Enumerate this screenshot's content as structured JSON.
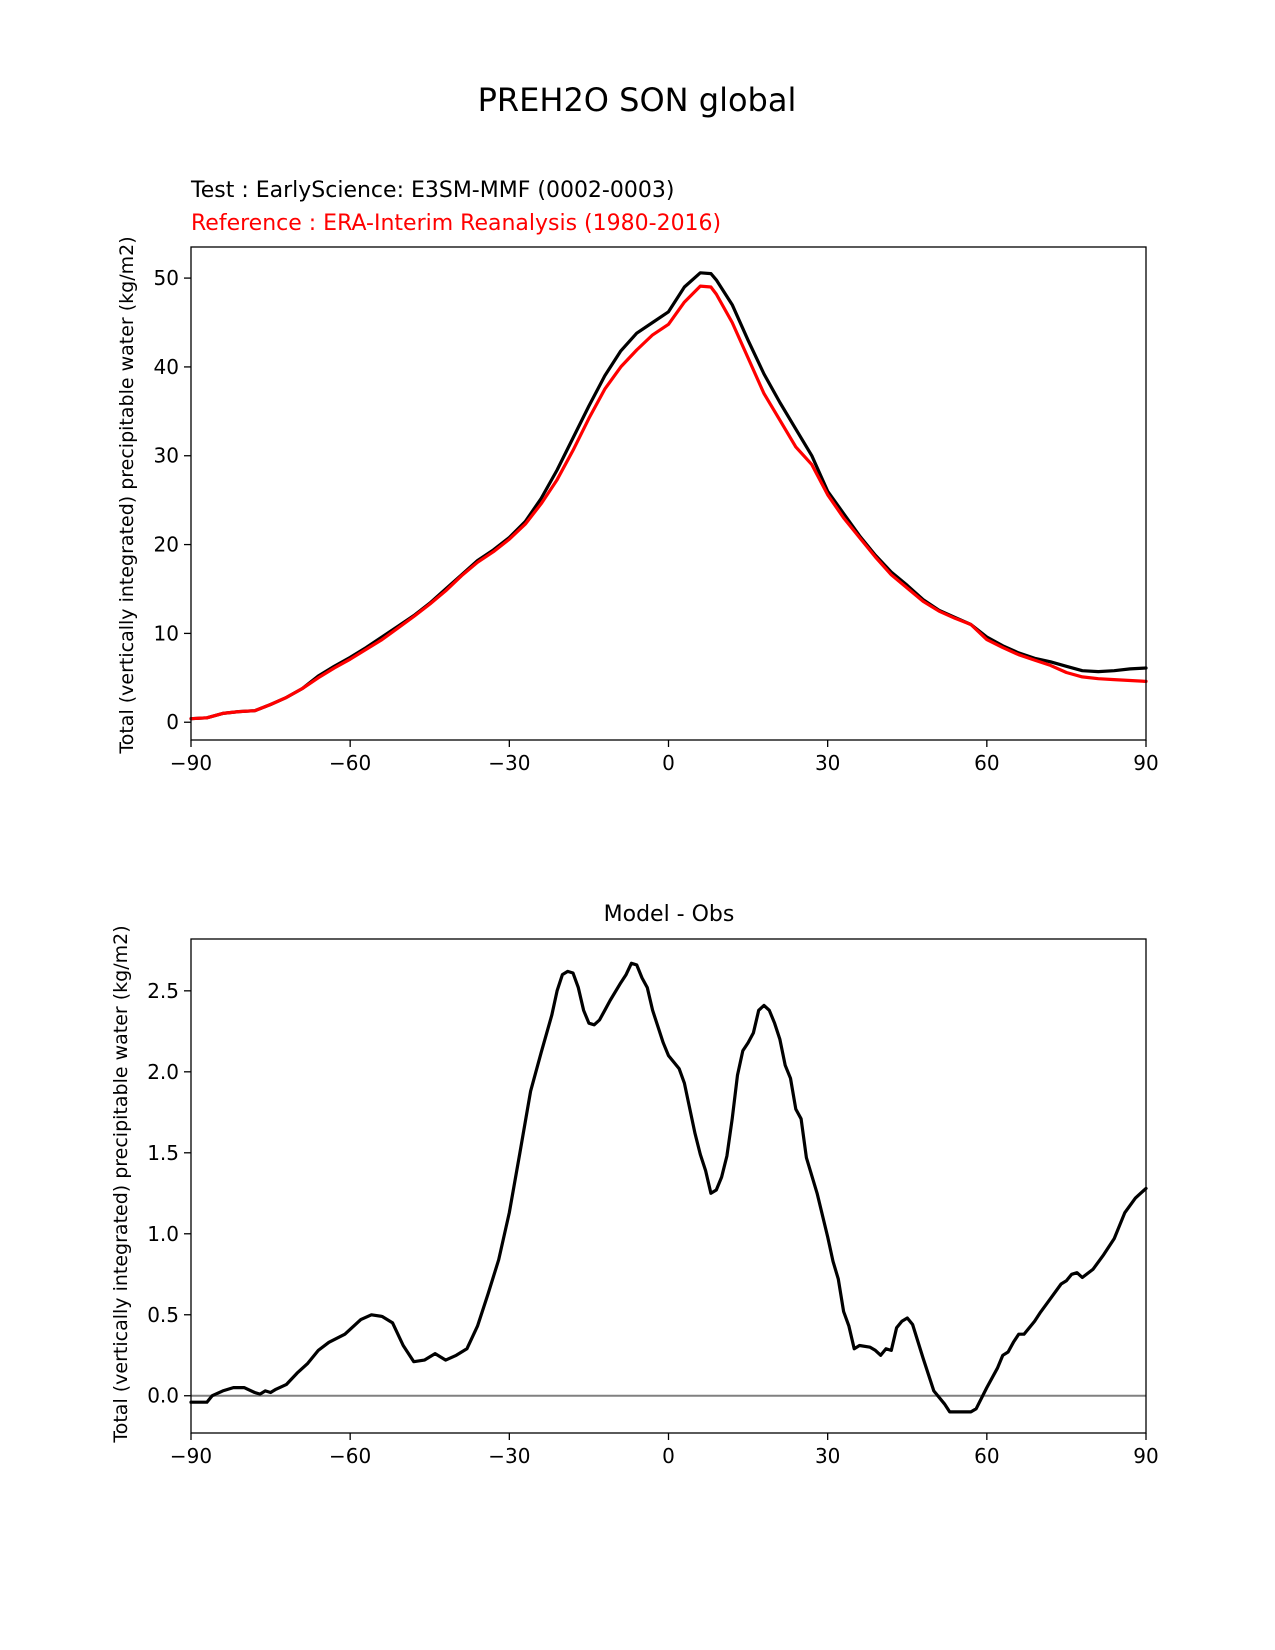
{
  "figure": {
    "title": "PREH2O SON global"
  },
  "chart_data": [
    {
      "type": "line",
      "test_label": "Test : EarlyScience: E3SM-MMF (0002-0003)",
      "reference_label": "Reference : ERA-Interim Reanalysis (1980-2016)",
      "xlabel": "",
      "ylabel": "Total (vertically integrated) precipitable water (kg/m2)",
      "xlim": [
        -90,
        90
      ],
      "ylim": [
        -2,
        53.5
      ],
      "xticks": [
        -90,
        -60,
        -30,
        0,
        30,
        60,
        90
      ],
      "xtick_labels": [
        "−90",
        "−60",
        "−30",
        "0",
        "30",
        "60",
        "90"
      ],
      "yticks": [
        0,
        10,
        20,
        30,
        40,
        50
      ],
      "ytick_labels": [
        "0",
        "10",
        "20",
        "30",
        "40",
        "50"
      ],
      "grid": false,
      "x": [
        -90,
        -87,
        -84,
        -81,
        -78,
        -75,
        -72,
        -69,
        -66,
        -63,
        -60,
        -57,
        -54,
        -51,
        -48,
        -45,
        -42,
        -39,
        -36,
        -33,
        -30,
        -27,
        -24,
        -21,
        -18,
        -15,
        -12,
        -9,
        -6,
        -3,
        0,
        3,
        6,
        8,
        9,
        12,
        15,
        18,
        21,
        24,
        27,
        30,
        33,
        36,
        39,
        42,
        45,
        48,
        51,
        54,
        57,
        60,
        63,
        66,
        69,
        72,
        75,
        78,
        81,
        84,
        87,
        90
      ],
      "series": [
        {
          "name": "Test",
          "color": "#000000",
          "values": [
            0.4,
            0.5,
            1.0,
            1.2,
            1.3,
            2.0,
            2.8,
            3.8,
            5.2,
            6.3,
            7.3,
            8.4,
            9.6,
            10.8,
            12.0,
            13.4,
            15.0,
            16.6,
            18.2,
            19.4,
            20.8,
            22.6,
            25.2,
            28.4,
            32.0,
            35.6,
            39.0,
            41.8,
            43.8,
            45.0,
            46.2,
            49.0,
            50.6,
            50.5,
            49.8,
            47.0,
            43.0,
            39.2,
            36.0,
            33.0,
            30.0,
            26.0,
            23.5,
            21.0,
            18.8,
            16.9,
            15.4,
            13.8,
            12.6,
            11.8,
            11.0,
            9.6,
            8.6,
            7.8,
            7.2,
            6.8,
            6.3,
            5.8,
            5.7,
            5.8,
            6.0,
            6.1
          ]
        },
        {
          "name": "Reference",
          "color": "#ff0000",
          "values": [
            0.4,
            0.5,
            1.0,
            1.2,
            1.3,
            2.0,
            2.8,
            3.8,
            5.0,
            6.1,
            7.1,
            8.2,
            9.3,
            10.6,
            11.9,
            13.3,
            14.8,
            16.5,
            18.0,
            19.2,
            20.6,
            22.3,
            24.6,
            27.3,
            30.6,
            34.2,
            37.5,
            40.0,
            41.9,
            43.6,
            44.8,
            47.3,
            49.1,
            49.0,
            48.2,
            45.0,
            41.0,
            37.0,
            34.0,
            31.0,
            29.0,
            25.6,
            23.0,
            20.8,
            18.6,
            16.6,
            15.1,
            13.6,
            12.5,
            11.7,
            11.0,
            9.3,
            8.4,
            7.6,
            7.0,
            6.4,
            5.6,
            5.1,
            4.9,
            4.8,
            4.7,
            4.6
          ]
        }
      ]
    },
    {
      "type": "line",
      "title": "Model - Obs",
      "xlabel": "",
      "ylabel": "Total (vertically integrated) precipitable water (kg/m2)",
      "xlim": [
        -90,
        90
      ],
      "ylim": [
        -0.23,
        2.82
      ],
      "xticks": [
        -90,
        -60,
        -30,
        0,
        30,
        60,
        90
      ],
      "xtick_labels": [
        "−90",
        "−60",
        "−30",
        "0",
        "30",
        "60",
        "90"
      ],
      "yticks": [
        0.0,
        0.5,
        1.0,
        1.5,
        2.0,
        2.5
      ],
      "ytick_labels": [
        "0.0",
        "0.5",
        "1.0",
        "1.5",
        "2.0",
        "2.5"
      ],
      "grid": false,
      "zero_line_color": "#808080",
      "x": [
        -90,
        -87,
        -86,
        -84,
        -82,
        -80,
        -78,
        -77,
        -76,
        -75,
        -74,
        -72,
        -70,
        -68,
        -66,
        -64,
        -61,
        -58,
        -56,
        -54,
        -52,
        -50,
        -48,
        -46,
        -44,
        -42,
        -40,
        -38,
        -36,
        -34,
        -32,
        -30,
        -28,
        -26,
        -24,
        -22,
        -21,
        -20,
        -19,
        -18,
        -17,
        -16,
        -15,
        -14,
        -13,
        -12,
        -11,
        -9,
        -8,
        -7,
        -6,
        -5,
        -4,
        -3,
        -2,
        -1,
        0,
        2,
        3,
        5,
        6,
        7,
        8,
        9,
        10,
        11,
        12,
        13,
        14,
        15,
        16,
        17,
        18,
        19,
        20,
        21,
        22,
        23,
        24,
        25,
        26,
        28,
        30,
        31,
        32,
        33,
        34,
        35,
        36,
        38,
        39,
        40,
        41,
        42,
        43,
        44,
        45,
        46,
        48,
        50,
        52,
        53,
        54,
        55,
        56,
        57,
        58,
        60,
        62,
        63,
        64,
        65,
        66,
        67,
        68,
        69,
        70,
        72,
        74,
        75,
        76,
        77,
        78,
        80,
        82,
        84,
        86,
        88,
        90
      ],
      "series": [
        {
          "name": "Model - Obs",
          "color": "#000000",
          "values": [
            -0.04,
            -0.04,
            0.0,
            0.03,
            0.05,
            0.05,
            0.02,
            0.01,
            0.03,
            0.02,
            0.04,
            0.07,
            0.14,
            0.2,
            0.28,
            0.33,
            0.38,
            0.47,
            0.5,
            0.49,
            0.45,
            0.31,
            0.21,
            0.22,
            0.26,
            0.22,
            0.25,
            0.29,
            0.43,
            0.63,
            0.84,
            1.13,
            1.5,
            1.88,
            2.12,
            2.35,
            2.5,
            2.6,
            2.62,
            2.61,
            2.52,
            2.38,
            2.3,
            2.29,
            2.32,
            2.38,
            2.44,
            2.55,
            2.6,
            2.67,
            2.66,
            2.58,
            2.52,
            2.38,
            2.28,
            2.18,
            2.1,
            2.02,
            1.93,
            1.62,
            1.49,
            1.39,
            1.25,
            1.27,
            1.35,
            1.48,
            1.71,
            1.98,
            2.13,
            2.18,
            2.24,
            2.38,
            2.41,
            2.38,
            2.3,
            2.2,
            2.04,
            1.96,
            1.77,
            1.71,
            1.47,
            1.25,
            0.98,
            0.83,
            0.72,
            0.52,
            0.43,
            0.29,
            0.31,
            0.3,
            0.28,
            0.25,
            0.29,
            0.28,
            0.42,
            0.46,
            0.48,
            0.44,
            0.23,
            0.03,
            -0.05,
            -0.1,
            -0.1,
            -0.1,
            -0.1,
            -0.1,
            -0.08,
            0.05,
            0.17,
            0.25,
            0.27,
            0.33,
            0.38,
            0.38,
            0.42,
            0.46,
            0.51,
            0.6,
            0.69,
            0.71,
            0.75,
            0.76,
            0.73,
            0.78,
            0.87,
            0.97,
            1.13,
            1.22,
            1.28
          ]
        }
      ]
    }
  ]
}
